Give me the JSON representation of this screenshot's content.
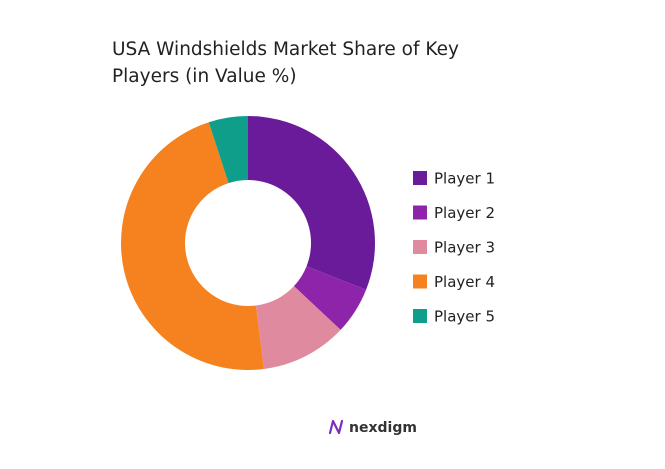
{
  "chart_data": {
    "type": "donut",
    "title": "USA Windshields Market Share of Key Players (in Value %)",
    "categories": [
      "Player 1",
      "Player 2",
      "Player 3",
      "Player 4",
      "Player 5"
    ],
    "values": [
      31,
      6,
      11,
      47,
      5
    ],
    "colors": [
      "#6a1b9a",
      "#8e24aa",
      "#e08aa0",
      "#f5821f",
      "#0e9e8a"
    ],
    "legend": "right"
  },
  "brand": "nexdigm"
}
